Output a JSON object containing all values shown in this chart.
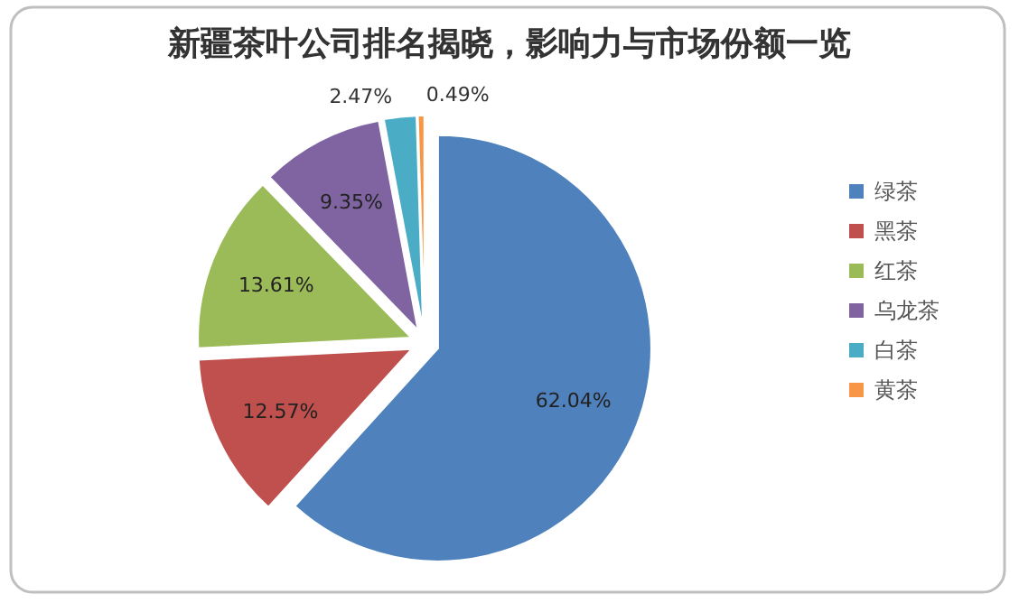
{
  "chart_data": {
    "type": "pie",
    "title": "新疆茶叶公司排名揭晓，影响力与市场份额一览",
    "categories": [
      "绿茶",
      "黑茶",
      "红茶",
      "乌龙茶",
      "白茶",
      "黄茶"
    ],
    "values": [
      62.04,
      12.57,
      13.61,
      9.35,
      2.47,
      0.49
    ],
    "colors": [
      "#4f81bd",
      "#c0504d",
      "#9bbb59",
      "#8064a2",
      "#4bacc6",
      "#f79646"
    ],
    "value_labels": [
      "62.04%",
      "12.57%",
      "13.61%",
      "9.35%",
      "2.47%",
      "0.49%"
    ],
    "legend": "right"
  }
}
